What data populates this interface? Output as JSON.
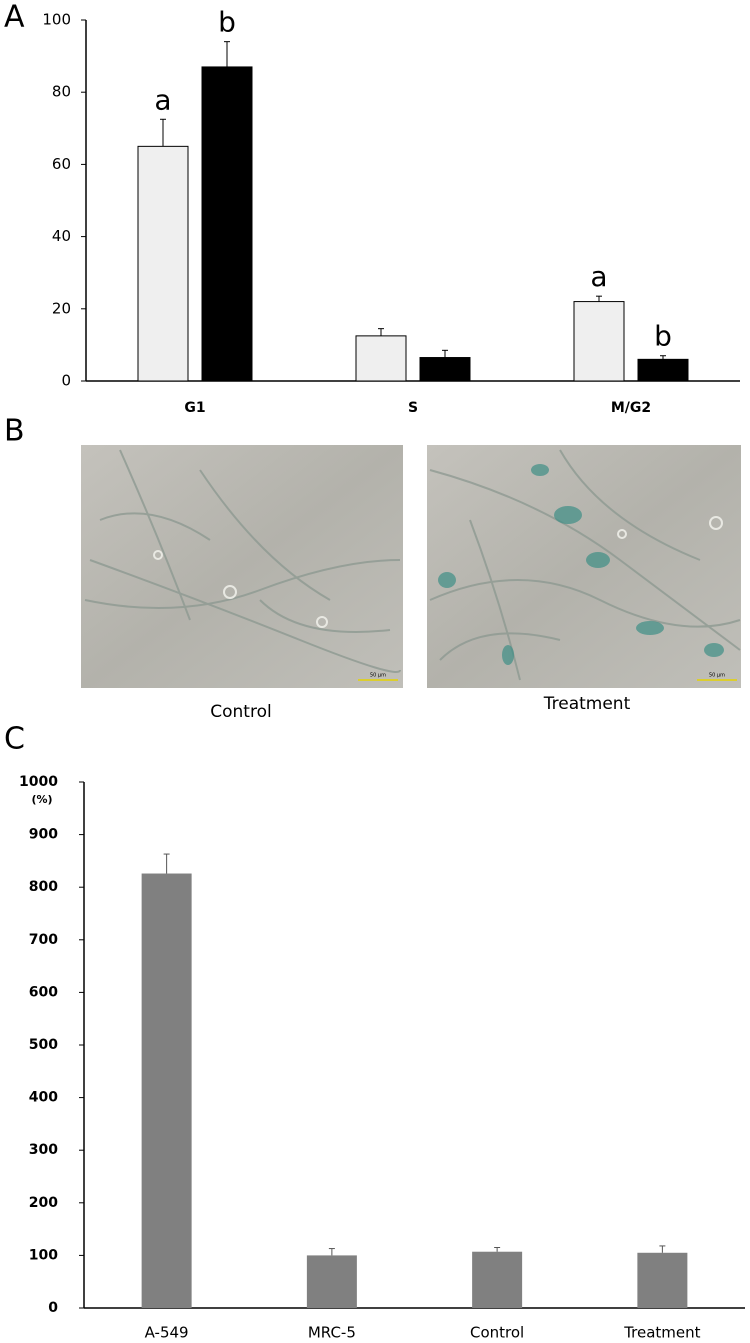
{
  "panel_labels": [
    "A",
    "B",
    "C"
  ],
  "chart_data": [
    {
      "type": "bar",
      "categories": [
        "G1",
        "S",
        "M/G2"
      ],
      "series": [
        {
          "color": "#efefef",
          "values": [
            65,
            12.5,
            22
          ],
          "errors": [
            7.5,
            2,
            1.5
          ],
          "significance": [
            "a",
            null,
            "a"
          ]
        },
        {
          "color": "#000000",
          "values": [
            87,
            6.5,
            6
          ],
          "errors": [
            7,
            2,
            1
          ],
          "significance": [
            "b",
            null,
            "b"
          ]
        }
      ],
      "edgecolor": "#000000",
      "ylim": [
        0,
        100
      ],
      "yticks": [
        0,
        20,
        40,
        60,
        80,
        100
      ],
      "grid": false
    },
    {
      "type": "bar",
      "y_label": "(%)",
      "categories": [
        "A-549",
        "MRC-5",
        "Control",
        "Treatment"
      ],
      "series": [
        {
          "color": "#808080",
          "values": [
            826,
            100,
            107,
            105
          ],
          "errors": [
            37,
            13,
            8,
            13
          ]
        }
      ],
      "ylim": [
        0,
        1000
      ],
      "yticks": [
        0,
        100,
        200,
        300,
        400,
        500,
        600,
        700,
        800,
        900,
        1000
      ],
      "grid": false
    }
  ],
  "images": {
    "captions": [
      "Control",
      "Treatment"
    ],
    "scale_bars": [
      "50 µm",
      "50 µm"
    ]
  }
}
